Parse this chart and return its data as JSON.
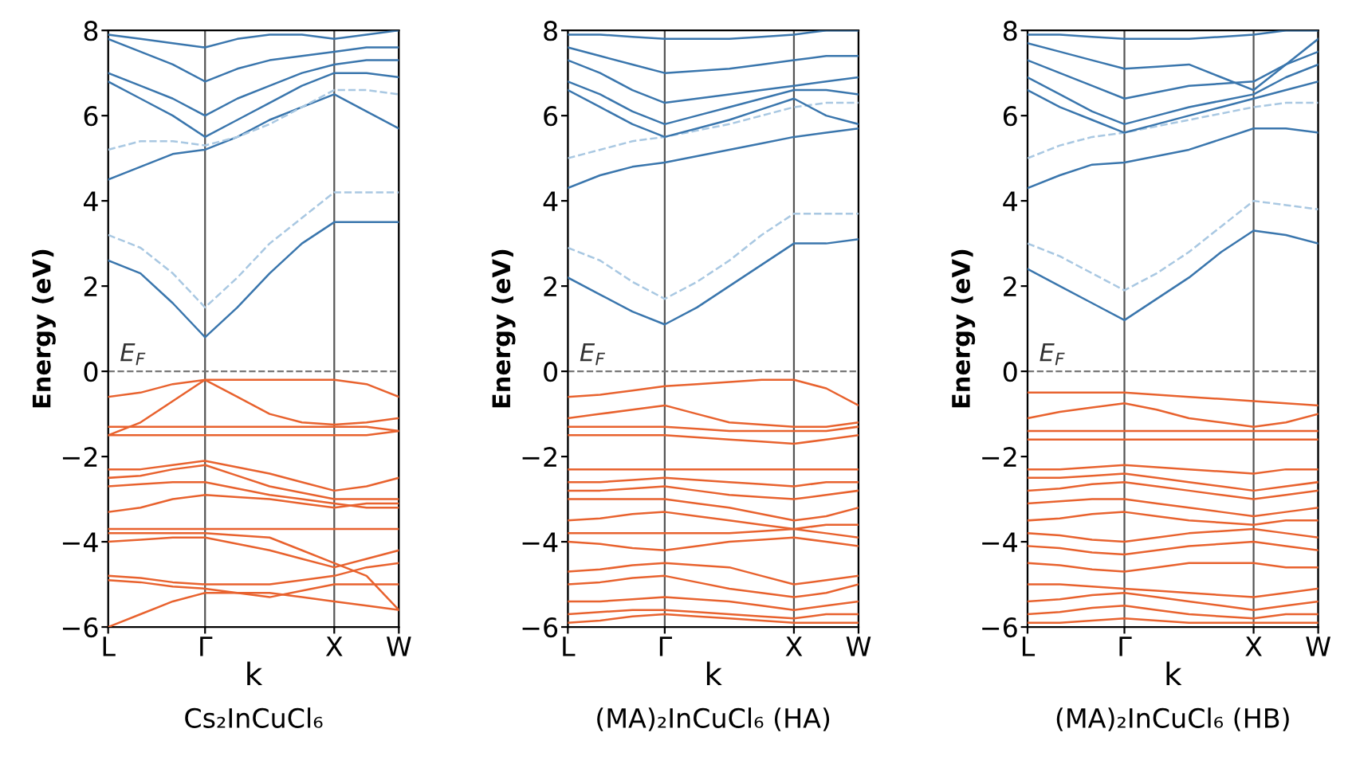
{
  "chart_data": [
    {
      "type": "line",
      "title": "Cs₂InCuCl₆",
      "xlabel": "k",
      "ylabel": "Energy (eV)",
      "categories": [
        "L",
        null,
        null,
        "Γ",
        null,
        null,
        null,
        "X",
        null,
        "W"
      ],
      "ylim": [
        -6,
        8
      ],
      "yticks": [
        -6,
        -4,
        -2,
        0,
        2,
        4,
        6,
        8
      ],
      "grid": "x",
      "marker": "none",
      "ref_lines": [
        {
          "axis": "y",
          "value": 0,
          "label": "E$_{F}$",
          "color": "#777777",
          "line_style": "dashed"
        }
      ],
      "series": [
        {
          "color": "#3a76ad",
          "line_style": "solid",
          "values": [
            2.6,
            2.3,
            1.6,
            0.8,
            1.5,
            2.3,
            3.0,
            3.5,
            3.5,
            3.5
          ]
        },
        {
          "color": "#a9c8e2",
          "line_style": "dashed",
          "values": [
            3.2,
            2.9,
            2.3,
            1.5,
            2.2,
            3.0,
            3.6,
            4.2,
            4.2,
            4.2
          ]
        },
        {
          "color": "#3a76ad",
          "line_style": "solid",
          "values": [
            4.5,
            4.8,
            5.1,
            5.2,
            5.5,
            5.9,
            6.2,
            6.5,
            6.1,
            5.7
          ]
        },
        {
          "color": "#a9c8e2",
          "line_style": "dashed",
          "values": [
            5.2,
            5.4,
            5.4,
            5.3,
            5.5,
            5.8,
            6.2,
            6.6,
            6.6,
            6.5
          ]
        },
        {
          "color": "#3a76ad",
          "line_style": "solid",
          "values": [
            6.8,
            6.4,
            6.0,
            5.5,
            5.9,
            6.3,
            6.7,
            7.0,
            7.0,
            6.9
          ]
        },
        {
          "color": "#3a76ad",
          "line_style": "solid",
          "values": [
            7.0,
            6.7,
            6.4,
            6.0,
            6.4,
            6.7,
            7.0,
            7.2,
            7.3,
            7.3
          ]
        },
        {
          "color": "#3a76ad",
          "line_style": "solid",
          "values": [
            7.8,
            7.5,
            7.2,
            6.8,
            7.1,
            7.3,
            7.4,
            7.5,
            7.6,
            7.6
          ]
        },
        {
          "color": "#3a76ad",
          "line_style": "solid",
          "values": [
            7.9,
            7.8,
            7.7,
            7.6,
            7.8,
            7.9,
            7.9,
            7.8,
            7.9,
            8.0
          ]
        },
        {
          "color": "#e8622e",
          "line_style": "solid",
          "values": [
            -0.6,
            -0.5,
            -0.3,
            -0.2,
            -0.2,
            -0.2,
            -0.2,
            -0.2,
            -0.3,
            -0.6
          ]
        },
        {
          "color": "#e8622e",
          "line_style": "solid",
          "values": [
            -1.5,
            -1.2,
            -0.7,
            -0.2,
            -0.6,
            -1.0,
            -1.2,
            -1.25,
            -1.2,
            -1.1
          ]
        },
        {
          "color": "#e8622e",
          "line_style": "solid",
          "values": [
            -1.3,
            -1.3,
            -1.3,
            -1.3,
            -1.3,
            -1.3,
            -1.3,
            -1.3,
            -1.3,
            -1.4
          ]
        },
        {
          "color": "#e8622e",
          "line_style": "solid",
          "values": [
            -1.5,
            -1.5,
            -1.5,
            -1.5,
            -1.5,
            -1.5,
            -1.5,
            -1.5,
            -1.5,
            -1.4
          ]
        },
        {
          "color": "#e8622e",
          "line_style": "solid",
          "values": [
            -2.3,
            -2.3,
            -2.2,
            -2.1,
            -2.25,
            -2.4,
            -2.6,
            -2.8,
            -2.7,
            -2.5
          ]
        },
        {
          "color": "#e8622e",
          "line_style": "solid",
          "values": [
            -2.5,
            -2.45,
            -2.3,
            -2.2,
            -2.45,
            -2.7,
            -2.85,
            -3.0,
            -3.0,
            -3.0
          ]
        },
        {
          "color": "#e8622e",
          "line_style": "solid",
          "values": [
            -2.7,
            -2.65,
            -2.6,
            -2.6,
            -2.75,
            -2.9,
            -3.0,
            -3.1,
            -3.2,
            -3.2
          ]
        },
        {
          "color": "#e8622e",
          "line_style": "solid",
          "values": [
            -3.3,
            -3.2,
            -3.0,
            -2.9,
            -2.95,
            -3.0,
            -3.1,
            -3.2,
            -3.1,
            -3.1
          ]
        },
        {
          "color": "#e8622e",
          "line_style": "solid",
          "values": [
            -3.7,
            -3.7,
            -3.7,
            -3.7,
            -3.7,
            -3.7,
            -3.7,
            -3.7,
            -3.7,
            -3.7
          ]
        },
        {
          "color": "#e8622e",
          "line_style": "solid",
          "values": [
            -3.8,
            -3.8,
            -3.8,
            -3.8,
            -3.85,
            -3.9,
            -4.2,
            -4.5,
            -4.8,
            -5.6
          ]
        },
        {
          "color": "#e8622e",
          "line_style": "solid",
          "values": [
            -4.0,
            -3.95,
            -3.9,
            -3.9,
            -4.05,
            -4.2,
            -4.4,
            -4.6,
            -4.4,
            -4.2
          ]
        },
        {
          "color": "#e8622e",
          "line_style": "solid",
          "values": [
            -4.8,
            -4.85,
            -4.95,
            -5.0,
            -5.0,
            -5.0,
            -4.9,
            -4.8,
            -4.6,
            -4.5
          ]
        },
        {
          "color": "#e8622e",
          "line_style": "solid",
          "values": [
            -4.9,
            -4.95,
            -5.05,
            -5.1,
            -5.2,
            -5.3,
            -5.15,
            -5.0,
            -5.0,
            -5.0
          ]
        },
        {
          "color": "#e8622e",
          "line_style": "solid",
          "values": [
            -6.0,
            -5.7,
            -5.4,
            -5.2,
            -5.2,
            -5.2,
            -5.3,
            -5.4,
            -5.5,
            -5.6
          ]
        }
      ]
    },
    {
      "type": "line",
      "title": "(MA)₂InCuCl₆ (HA)",
      "xlabel": "k",
      "ylabel": "Energy (eV)",
      "categories": [
        "L",
        null,
        null,
        "Γ",
        null,
        null,
        null,
        "X",
        null,
        "W"
      ],
      "ylim": [
        -6,
        8
      ],
      "yticks": [
        -6,
        -4,
        -2,
        0,
        2,
        4,
        6,
        8
      ],
      "grid": "x",
      "marker": "none",
      "ref_lines": [
        {
          "axis": "y",
          "value": 0,
          "label": "E$_{F}$",
          "color": "#777777",
          "line_style": "dashed"
        }
      ],
      "series": [
        {
          "color": "#3a76ad",
          "line_style": "solid",
          "values": [
            2.2,
            1.8,
            1.4,
            1.1,
            1.5,
            2.0,
            2.5,
            3.0,
            3.0,
            3.1
          ]
        },
        {
          "color": "#a9c8e2",
          "line_style": "dashed",
          "values": [
            2.9,
            2.6,
            2.1,
            1.7,
            2.1,
            2.6,
            3.2,
            3.7,
            3.7,
            3.7
          ]
        },
        {
          "color": "#3a76ad",
          "line_style": "solid",
          "values": [
            4.3,
            4.6,
            4.8,
            4.9,
            5.05,
            5.2,
            5.35,
            5.5,
            5.6,
            5.7
          ]
        },
        {
          "color": "#a9c8e2",
          "line_style": "dashed",
          "values": [
            5.0,
            5.2,
            5.4,
            5.5,
            5.65,
            5.8,
            6.0,
            6.2,
            6.3,
            6.3
          ]
        },
        {
          "color": "#3a76ad",
          "line_style": "solid",
          "values": [
            6.6,
            6.2,
            5.8,
            5.5,
            5.7,
            5.9,
            6.15,
            6.4,
            6.0,
            5.8
          ]
        },
        {
          "color": "#3a76ad",
          "line_style": "solid",
          "values": [
            6.8,
            6.5,
            6.1,
            5.8,
            6.0,
            6.2,
            6.4,
            6.6,
            6.6,
            6.5
          ]
        },
        {
          "color": "#3a76ad",
          "line_style": "solid",
          "values": [
            7.3,
            7.0,
            6.6,
            6.3,
            6.4,
            6.5,
            6.6,
            6.7,
            6.8,
            6.9
          ]
        },
        {
          "color": "#3a76ad",
          "line_style": "solid",
          "values": [
            7.6,
            7.4,
            7.2,
            7.0,
            7.05,
            7.1,
            7.2,
            7.3,
            7.4,
            7.4
          ]
        },
        {
          "color": "#3a76ad",
          "line_style": "solid",
          "values": [
            7.9,
            7.9,
            7.85,
            7.8,
            7.8,
            7.8,
            7.85,
            7.9,
            8.0,
            8.0
          ]
        },
        {
          "color": "#e8622e",
          "line_style": "solid",
          "values": [
            -0.6,
            -0.55,
            -0.45,
            -0.35,
            -0.3,
            -0.25,
            -0.2,
            -0.2,
            -0.4,
            -0.8
          ]
        },
        {
          "color": "#e8622e",
          "line_style": "solid",
          "values": [
            -1.1,
            -1.0,
            -0.9,
            -0.8,
            -1.0,
            -1.2,
            -1.25,
            -1.3,
            -1.3,
            -1.2
          ]
        },
        {
          "color": "#e8622e",
          "line_style": "solid",
          "values": [
            -1.3,
            -1.3,
            -1.3,
            -1.3,
            -1.35,
            -1.4,
            -1.4,
            -1.4,
            -1.4,
            -1.3
          ]
        },
        {
          "color": "#e8622e",
          "line_style": "solid",
          "values": [
            -1.5,
            -1.5,
            -1.5,
            -1.5,
            -1.55,
            -1.6,
            -1.65,
            -1.7,
            -1.6,
            -1.5
          ]
        },
        {
          "color": "#e8622e",
          "line_style": "solid",
          "values": [
            -2.3,
            -2.3,
            -2.3,
            -2.3,
            -2.3,
            -2.3,
            -2.3,
            -2.3,
            -2.3,
            -2.3
          ]
        },
        {
          "color": "#e8622e",
          "line_style": "solid",
          "values": [
            -2.6,
            -2.6,
            -2.55,
            -2.5,
            -2.55,
            -2.6,
            -2.65,
            -2.7,
            -2.6,
            -2.6
          ]
        },
        {
          "color": "#e8622e",
          "line_style": "solid",
          "values": [
            -2.8,
            -2.8,
            -2.75,
            -2.7,
            -2.8,
            -2.9,
            -2.95,
            -3.0,
            -2.9,
            -2.8
          ]
        },
        {
          "color": "#e8622e",
          "line_style": "solid",
          "values": [
            -3.0,
            -3.0,
            -3.0,
            -3.0,
            -3.1,
            -3.2,
            -3.35,
            -3.5,
            -3.4,
            -3.2
          ]
        },
        {
          "color": "#e8622e",
          "line_style": "solid",
          "values": [
            -3.5,
            -3.45,
            -3.35,
            -3.3,
            -3.4,
            -3.5,
            -3.6,
            -3.7,
            -3.6,
            -3.6
          ]
        },
        {
          "color": "#e8622e",
          "line_style": "solid",
          "values": [
            -3.8,
            -3.8,
            -3.8,
            -3.8,
            -3.8,
            -3.8,
            -3.75,
            -3.7,
            -3.8,
            -3.9
          ]
        },
        {
          "color": "#e8622e",
          "line_style": "solid",
          "values": [
            -4.0,
            -4.05,
            -4.15,
            -4.2,
            -4.1,
            -4.0,
            -3.95,
            -3.9,
            -4.0,
            -4.1
          ]
        },
        {
          "color": "#e8622e",
          "line_style": "solid",
          "values": [
            -4.7,
            -4.65,
            -4.55,
            -4.5,
            -4.55,
            -4.6,
            -4.8,
            -5.0,
            -4.9,
            -4.8
          ]
        },
        {
          "color": "#e8622e",
          "line_style": "solid",
          "values": [
            -5.0,
            -4.95,
            -4.85,
            -4.8,
            -4.95,
            -5.1,
            -5.2,
            -5.3,
            -5.2,
            -5.0
          ]
        },
        {
          "color": "#e8622e",
          "line_style": "solid",
          "values": [
            -5.4,
            -5.4,
            -5.35,
            -5.3,
            -5.35,
            -5.4,
            -5.5,
            -5.6,
            -5.5,
            -5.4
          ]
        },
        {
          "color": "#e8622e",
          "line_style": "solid",
          "values": [
            -5.7,
            -5.65,
            -5.6,
            -5.6,
            -5.65,
            -5.7,
            -5.75,
            -5.8,
            -5.7,
            -5.7
          ]
        },
        {
          "color": "#e8622e",
          "line_style": "solid",
          "values": [
            -5.9,
            -5.85,
            -5.75,
            -5.7,
            -5.75,
            -5.8,
            -5.85,
            -5.9,
            -5.9,
            -5.9
          ]
        }
      ]
    },
    {
      "type": "line",
      "title": "(MA)₂InCuCl₆ (HB)",
      "xlabel": "k",
      "ylabel": "Energy (eV)",
      "categories": [
        "L",
        null,
        null,
        "Γ",
        null,
        null,
        null,
        "X",
        null,
        "W"
      ],
      "ylim": [
        -6,
        8
      ],
      "yticks": [
        -6,
        -4,
        -2,
        0,
        2,
        4,
        6,
        8
      ],
      "grid": "x",
      "marker": "none",
      "ref_lines": [
        {
          "axis": "y",
          "value": 0,
          "label": "E$_{F}$",
          "color": "#777777",
          "line_style": "dashed"
        }
      ],
      "series": [
        {
          "color": "#3a76ad",
          "line_style": "solid",
          "values": [
            2.4,
            2.0,
            1.6,
            1.2,
            1.7,
            2.2,
            2.8,
            3.3,
            3.2,
            3.0
          ]
        },
        {
          "color": "#a9c8e2",
          "line_style": "dashed",
          "values": [
            3.0,
            2.7,
            2.3,
            1.9,
            2.3,
            2.8,
            3.4,
            4.0,
            3.9,
            3.8
          ]
        },
        {
          "color": "#3a76ad",
          "line_style": "solid",
          "values": [
            4.3,
            4.6,
            4.85,
            4.9,
            5.05,
            5.2,
            5.45,
            5.7,
            5.7,
            5.6
          ]
        },
        {
          "color": "#a9c8e2",
          "line_style": "dashed",
          "values": [
            5.0,
            5.3,
            5.5,
            5.6,
            5.75,
            5.9,
            6.05,
            6.2,
            6.3,
            6.3
          ]
        },
        {
          "color": "#3a76ad",
          "line_style": "solid",
          "values": [
            6.6,
            6.2,
            5.9,
            5.6,
            5.8,
            6.0,
            6.2,
            6.4,
            6.6,
            6.8
          ]
        },
        {
          "color": "#3a76ad",
          "line_style": "solid",
          "values": [
            6.9,
            6.5,
            6.1,
            5.8,
            6.0,
            6.2,
            6.35,
            6.5,
            6.9,
            7.2
          ]
        },
        {
          "color": "#3a76ad",
          "line_style": "solid",
          "values": [
            7.3,
            7.0,
            6.7,
            6.4,
            6.55,
            6.7,
            6.75,
            6.8,
            7.2,
            7.5
          ]
        },
        {
          "color": "#3a76ad",
          "line_style": "solid",
          "values": [
            7.7,
            7.5,
            7.3,
            7.1,
            7.15,
            7.2,
            6.9,
            6.6,
            7.2,
            7.8
          ]
        },
        {
          "color": "#3a76ad",
          "line_style": "solid",
          "values": [
            7.9,
            7.9,
            7.85,
            7.8,
            7.8,
            7.8,
            7.85,
            7.9,
            8.0,
            8.0
          ]
        },
        {
          "color": "#e8622e",
          "line_style": "solid",
          "values": [
            -0.5,
            -0.5,
            -0.5,
            -0.5,
            -0.55,
            -0.6,
            -0.65,
            -0.7,
            -0.75,
            -0.8
          ]
        },
        {
          "color": "#e8622e",
          "line_style": "solid",
          "values": [
            -1.1,
            -0.95,
            -0.85,
            -0.75,
            -0.9,
            -1.1,
            -1.2,
            -1.3,
            -1.2,
            -1.0
          ]
        },
        {
          "color": "#e8622e",
          "line_style": "solid",
          "values": [
            -1.4,
            -1.4,
            -1.4,
            -1.4,
            -1.4,
            -1.4,
            -1.4,
            -1.4,
            -1.4,
            -1.4
          ]
        },
        {
          "color": "#e8622e",
          "line_style": "solid",
          "values": [
            -1.6,
            -1.6,
            -1.6,
            -1.6,
            -1.6,
            -1.6,
            -1.6,
            -1.6,
            -1.6,
            -1.6
          ]
        },
        {
          "color": "#e8622e",
          "line_style": "solid",
          "values": [
            -2.3,
            -2.3,
            -2.25,
            -2.2,
            -2.25,
            -2.3,
            -2.35,
            -2.4,
            -2.3,
            -2.3
          ]
        },
        {
          "color": "#e8622e",
          "line_style": "solid",
          "values": [
            -2.5,
            -2.5,
            -2.45,
            -2.4,
            -2.5,
            -2.6,
            -2.7,
            -2.8,
            -2.7,
            -2.6
          ]
        },
        {
          "color": "#e8622e",
          "line_style": "solid",
          "values": [
            -2.8,
            -2.75,
            -2.65,
            -2.6,
            -2.7,
            -2.8,
            -2.9,
            -3.0,
            -2.9,
            -2.8
          ]
        },
        {
          "color": "#e8622e",
          "line_style": "solid",
          "values": [
            -3.1,
            -3.05,
            -3.0,
            -3.0,
            -3.1,
            -3.2,
            -3.3,
            -3.4,
            -3.3,
            -3.2
          ]
        },
        {
          "color": "#e8622e",
          "line_style": "solid",
          "values": [
            -3.5,
            -3.45,
            -3.35,
            -3.3,
            -3.4,
            -3.5,
            -3.55,
            -3.6,
            -3.5,
            -3.5
          ]
        },
        {
          "color": "#e8622e",
          "line_style": "solid",
          "values": [
            -3.8,
            -3.85,
            -3.95,
            -4.0,
            -3.9,
            -3.8,
            -3.75,
            -3.7,
            -3.8,
            -3.9
          ]
        },
        {
          "color": "#e8622e",
          "line_style": "solid",
          "values": [
            -4.1,
            -4.15,
            -4.25,
            -4.3,
            -4.2,
            -4.1,
            -4.05,
            -4.0,
            -4.1,
            -4.2
          ]
        },
        {
          "color": "#e8622e",
          "line_style": "solid",
          "values": [
            -4.5,
            -4.55,
            -4.65,
            -4.7,
            -4.6,
            -4.5,
            -4.5,
            -4.5,
            -4.6,
            -4.6
          ]
        },
        {
          "color": "#e8622e",
          "line_style": "solid",
          "values": [
            -5.0,
            -5.0,
            -5.05,
            -5.1,
            -5.15,
            -5.2,
            -5.25,
            -5.3,
            -5.2,
            -5.1
          ]
        },
        {
          "color": "#e8622e",
          "line_style": "solid",
          "values": [
            -5.4,
            -5.35,
            -5.25,
            -5.2,
            -5.3,
            -5.4,
            -5.5,
            -5.6,
            -5.5,
            -5.4
          ]
        },
        {
          "color": "#e8622e",
          "line_style": "solid",
          "values": [
            -5.7,
            -5.65,
            -5.55,
            -5.5,
            -5.6,
            -5.7,
            -5.75,
            -5.8,
            -5.7,
            -5.7
          ]
        },
        {
          "color": "#e8622e",
          "line_style": "solid",
          "values": [
            -5.9,
            -5.9,
            -5.85,
            -5.8,
            -5.85,
            -5.9,
            -5.9,
            -5.9,
            -5.9,
            -5.9
          ]
        }
      ]
    }
  ]
}
